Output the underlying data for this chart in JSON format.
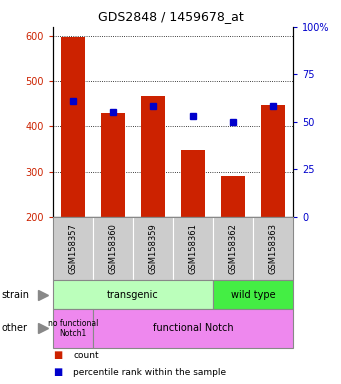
{
  "title": "GDS2848 / 1459678_at",
  "categories": [
    "GSM158357",
    "GSM158360",
    "GSM158359",
    "GSM158361",
    "GSM158362",
    "GSM158363"
  ],
  "bar_values": [
    598,
    430,
    467,
    348,
    290,
    448
  ],
  "bar_color": "#cc2200",
  "blue_marker_values": [
    457,
    433,
    445,
    422,
    410,
    446
  ],
  "blue_marker_color": "#0000cc",
  "ylim_left": [
    200,
    620
  ],
  "ylim_right": [
    0,
    100
  ],
  "yticks_left": [
    200,
    300,
    400,
    500,
    600
  ],
  "yticks_right": [
    0,
    25,
    50,
    75,
    100
  ],
  "yticklabels_right": [
    "0",
    "25",
    "50",
    "75",
    "100%"
  ],
  "left_tick_color": "#cc2200",
  "right_tick_color": "#0000cc",
  "transgenic_color": "#bbffbb",
  "wildtype_color": "#44ee44",
  "other_color": "#ee88ee",
  "xlabel_bg": "#cccccc",
  "bar_width": 0.6,
  "title_fontsize": 9,
  "tick_fontsize": 7,
  "xlabel_fontsize": 6,
  "annot_fontsize": 7
}
